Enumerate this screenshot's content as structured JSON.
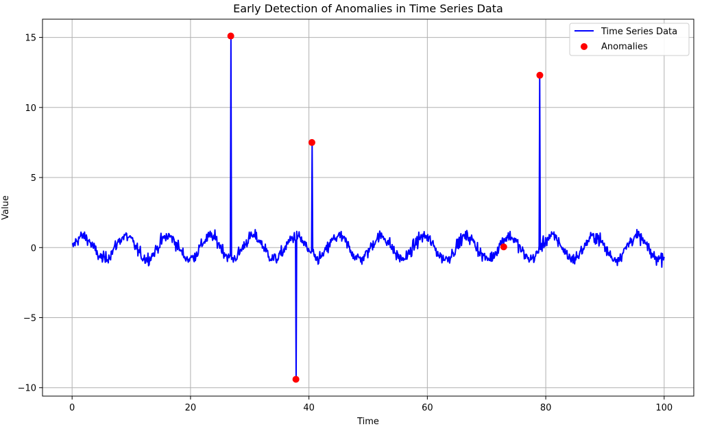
{
  "chart_data": {
    "type": "line",
    "title": "Early Detection of Anomalies in Time Series Data",
    "xlabel": "Time",
    "ylabel": "Value",
    "xlim": [
      -5,
      105
    ],
    "ylim": [
      -10.6,
      16.3
    ],
    "xticks": [
      0,
      20,
      40,
      60,
      80,
      100
    ],
    "xtick_labels": [
      "0",
      "20",
      "40",
      "60",
      "80",
      "100"
    ],
    "yticks": [
      -10,
      -5,
      0,
      5,
      10,
      15
    ],
    "ytick_labels": [
      "−10",
      "−5",
      "0",
      "5",
      "10",
      "15"
    ],
    "grid": true,
    "legend_position": "top-right",
    "series": [
      {
        "name": "Time Series Data",
        "color": "#0000ff",
        "kind": "line",
        "baseline": {
          "n": 1000,
          "x_start": 0,
          "x_end": 100,
          "period": 7.2,
          "amplitude": 0.8,
          "noise": 0.45
        },
        "spikes": [
          {
            "x": 26.8,
            "y": 15.1
          },
          {
            "x": 37.8,
            "y": -9.4
          },
          {
            "x": 40.5,
            "y": 7.5
          },
          {
            "x": 79.0,
            "y": 12.3
          }
        ]
      },
      {
        "name": "Anomalies",
        "color": "#ff0000",
        "kind": "scatter",
        "x": [
          26.8,
          37.8,
          40.5,
          72.9,
          79.0
        ],
        "y": [
          15.1,
          -9.4,
          7.5,
          0.05,
          12.3
        ]
      }
    ]
  }
}
